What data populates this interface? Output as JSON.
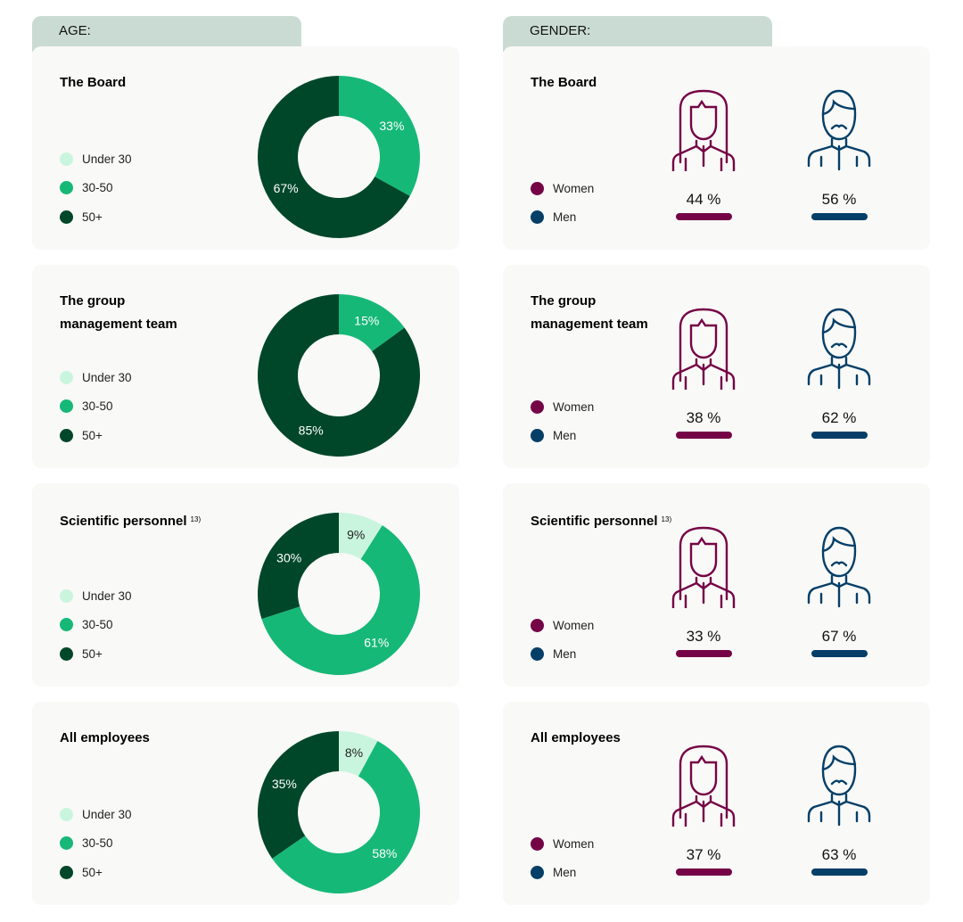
{
  "headers": {
    "age": "AGE:",
    "gender": "GENDER:"
  },
  "colors": {
    "under30": "#c9f5de",
    "age3050": "#16b878",
    "age50": "#00472a",
    "women": "#750446",
    "men": "#053f68"
  },
  "legend_age": [
    "Under 30",
    "30-50",
    "50+"
  ],
  "legend_gender": [
    "Women",
    "Men"
  ],
  "chart_data": [
    {
      "type": "pie",
      "group": "The Board",
      "categories": [
        "Under 30",
        "30-50",
        "50+"
      ],
      "values": [
        0,
        33,
        67
      ],
      "labels": [
        "",
        "33%",
        "67%"
      ]
    },
    {
      "type": "pie",
      "group": "The group management team",
      "categories": [
        "Under 30",
        "30-50",
        "50+"
      ],
      "values": [
        0,
        15,
        85
      ],
      "labels": [
        "",
        "15%",
        "85%"
      ]
    },
    {
      "type": "pie",
      "group": "Scientific personnel",
      "categories": [
        "Under 30",
        "30-50",
        "50+"
      ],
      "values": [
        9,
        61,
        30
      ],
      "labels": [
        "9%",
        "61%",
        "30%"
      ]
    },
    {
      "type": "pie",
      "group": "All employees",
      "categories": [
        "Under 30",
        "30-50",
        "50+"
      ],
      "values": [
        8,
        58,
        35
      ],
      "labels": [
        "8%",
        "58%",
        "35%"
      ]
    }
  ],
  "groups": [
    {
      "title": "The Board",
      "note": "",
      "women": "44 %",
      "men": "56 %"
    },
    {
      "title": "The group management team",
      "note": "",
      "women": "38 %",
      "men": "62 %"
    },
    {
      "title": "Scientific personnel",
      "note": "13)",
      "women": "33 %",
      "men": "67 %"
    },
    {
      "title": "All employees",
      "note": "",
      "women": "37 %",
      "men": "63 %"
    }
  ]
}
